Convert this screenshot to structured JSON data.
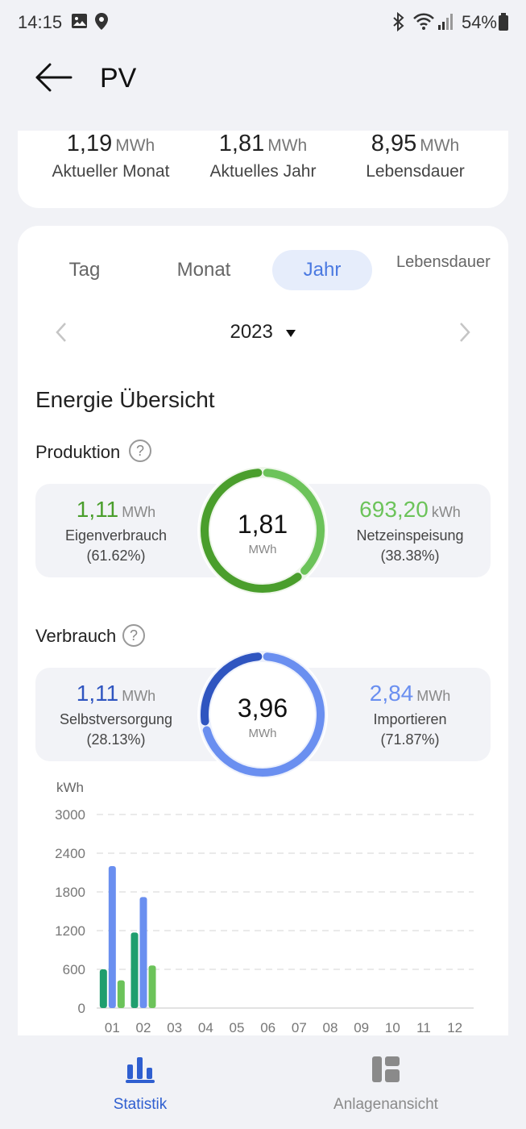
{
  "status_bar": {
    "time": "14:15",
    "battery": "54%"
  },
  "header": {
    "title": "PV"
  },
  "summary": [
    {
      "value": "1,19",
      "unit": "MWh",
      "label": "Aktueller Monat"
    },
    {
      "value": "1,81",
      "unit": "MWh",
      "label": "Aktuelles Jahr"
    },
    {
      "value": "8,95",
      "unit": "MWh",
      "label": "Lebensdauer"
    }
  ],
  "tabs": [
    {
      "label": "Tag"
    },
    {
      "label": "Monat"
    },
    {
      "label": "Jahr",
      "active": true
    },
    {
      "label": "Lebensdauer"
    }
  ],
  "period": {
    "selected": "2023"
  },
  "overview": {
    "title": "Energie Übersicht",
    "production": {
      "title": "Produktion",
      "total": "1,81",
      "total_unit": "MWh",
      "left": {
        "value": "1,11",
        "unit": "MWh",
        "label": "Eigenverbrauch",
        "pct": "(61.62%)",
        "color": "#4a9e2c"
      },
      "right": {
        "value": "693,20",
        "unit": "kWh",
        "label": "Netzeinspeisung",
        "pct": "(38.38%)",
        "color": "#6cc35a"
      },
      "left_share": 0.6162
    },
    "consumption": {
      "title": "Verbrauch",
      "total": "3,96",
      "total_unit": "MWh",
      "left": {
        "value": "1,11",
        "unit": "MWh",
        "label": "Selbstversorgung",
        "pct": "(28.13%)",
        "color": "#2f55c0"
      },
      "right": {
        "value": "2,84",
        "unit": "MWh",
        "label": "Importieren",
        "pct": "(71.87%)",
        "color": "#6a8ff0"
      },
      "left_share": 0.2813
    }
  },
  "chart_data": {
    "type": "bar",
    "ylabel": "kWh",
    "ylim": [
      0,
      3000
    ],
    "yticks": [
      "0",
      "600",
      "1200",
      "1800",
      "2400",
      "3000"
    ],
    "categories": [
      "01",
      "02",
      "03",
      "04",
      "05",
      "06",
      "07",
      "08",
      "09",
      "10",
      "11",
      "12"
    ],
    "series": [
      {
        "color": "#1f9e6e",
        "values": [
          600,
          1170,
          0,
          0,
          0,
          0,
          0,
          0,
          0,
          0,
          0,
          0
        ]
      },
      {
        "color": "#6a8ff0",
        "values": [
          2200,
          1720,
          0,
          0,
          0,
          0,
          0,
          0,
          0,
          0,
          0,
          0
        ]
      },
      {
        "color": "#6cc35a",
        "values": [
          430,
          660,
          0,
          0,
          0,
          0,
          0,
          0,
          0,
          0,
          0,
          0
        ]
      }
    ],
    "grid": true
  },
  "nav": [
    {
      "label": "Statistik",
      "active": true,
      "icon": "bar-chart-icon"
    },
    {
      "label": "Anlagenansicht",
      "active": false,
      "icon": "plant-view-icon"
    }
  ],
  "colors": {
    "accent": "#2f5fd0",
    "inactive": "#8a8a8a"
  }
}
